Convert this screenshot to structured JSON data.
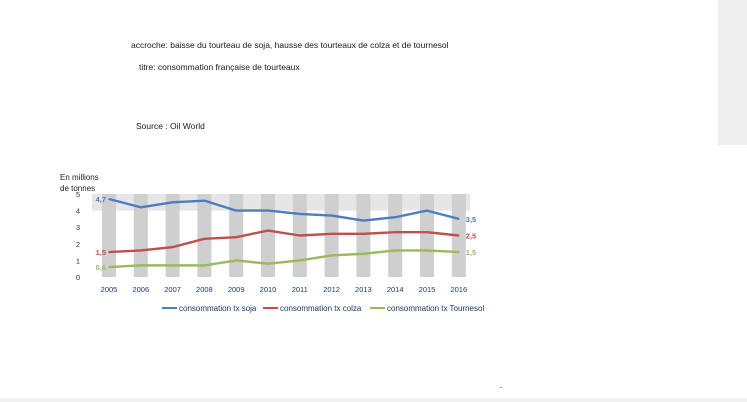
{
  "notes": {
    "accroche": "accroche: baisse du tourteau de soja, hausse des tourteaux de colza et de tournesol",
    "titre": "titre: consommation française de tourteaux",
    "source": "Source : Oil World"
  },
  "chart_data": {
    "type": "line",
    "ylabel_line1": "En millions",
    "ylabel_line2": "de tonnes",
    "x": [
      "2005",
      "2006",
      "2007",
      "2008",
      "2009",
      "2010",
      "2011",
      "2012",
      "2013",
      "2014",
      "2015",
      "2016"
    ],
    "ylim": [
      0,
      5
    ],
    "yticks": [
      "0",
      "1",
      "2",
      "3",
      "4",
      "5"
    ],
    "series": [
      {
        "name": "consommation tx soja",
        "color": "#4a7ebf",
        "values": [
          4.7,
          4.2,
          4.5,
          4.6,
          4.0,
          4.0,
          3.8,
          3.7,
          3.4,
          3.6,
          4.0,
          3.5
        ],
        "first_label": "4,7",
        "last_label": "3,5"
      },
      {
        "name": "consommation tx colza",
        "color": "#c0504d",
        "values": [
          1.5,
          1.6,
          1.8,
          2.3,
          2.4,
          2.8,
          2.5,
          2.6,
          2.6,
          2.7,
          2.7,
          2.5
        ],
        "first_label": "1,5",
        "last_label": "2,5"
      },
      {
        "name": "consommation tx Tournesol",
        "color": "#9bbb59",
        "values": [
          0.6,
          0.7,
          0.7,
          0.7,
          1.0,
          0.8,
          1.0,
          1.3,
          1.4,
          1.6,
          1.6,
          1.5
        ],
        "first_label": "0,6",
        "last_label": "1,5"
      }
    ],
    "grid": "alternating vertical bands",
    "legend": "bottom"
  }
}
